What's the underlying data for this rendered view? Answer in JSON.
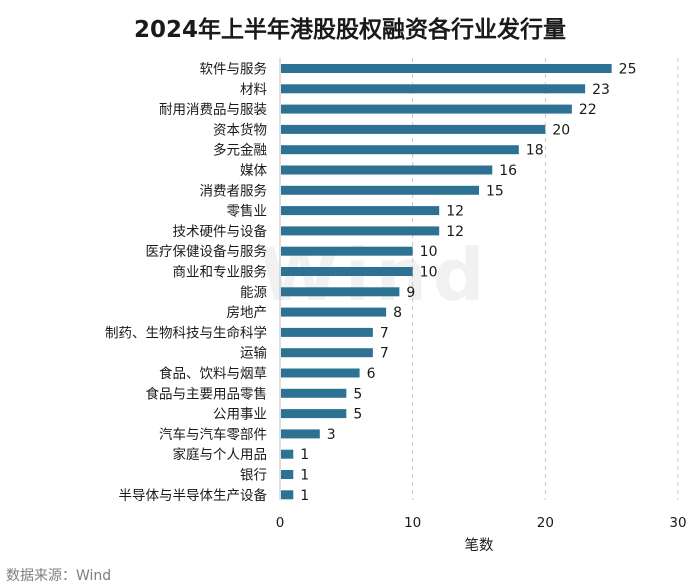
{
  "chart_data": {
    "type": "bar",
    "orientation": "horizontal",
    "title": "2024年上半年港股股权融资各行业发行量",
    "categories": [
      "软件与服务",
      "材料",
      "耐用消费品与服装",
      "资本货物",
      "多元金融",
      "媒体",
      "消费者服务",
      "零售业",
      "技术硬件与设备",
      "医疗保健设备与服务",
      "商业和专业服务",
      "能源",
      "房地产",
      "制药、生物科技与生命科学",
      "运输",
      "食品、饮料与烟草",
      "食品与主要用品零售",
      "公用事业",
      "汽车与汽车零部件",
      "家庭与个人用品",
      "银行",
      "半导体与半导体生产设备"
    ],
    "values": [
      25,
      23,
      22,
      20,
      18,
      16,
      15,
      12,
      12,
      10,
      10,
      9,
      8,
      7,
      7,
      6,
      5,
      5,
      3,
      1,
      1,
      1
    ],
    "xlabel": "笔数",
    "ylabel": "",
    "xlim": [
      0,
      30
    ],
    "xticks": [
      0,
      10,
      20,
      30
    ],
    "grid": "vertical dashed",
    "bar_color": "#2e7293",
    "grid_color": "#c8c8c8"
  },
  "source": "数据来源：Wind",
  "watermark": "Wind"
}
